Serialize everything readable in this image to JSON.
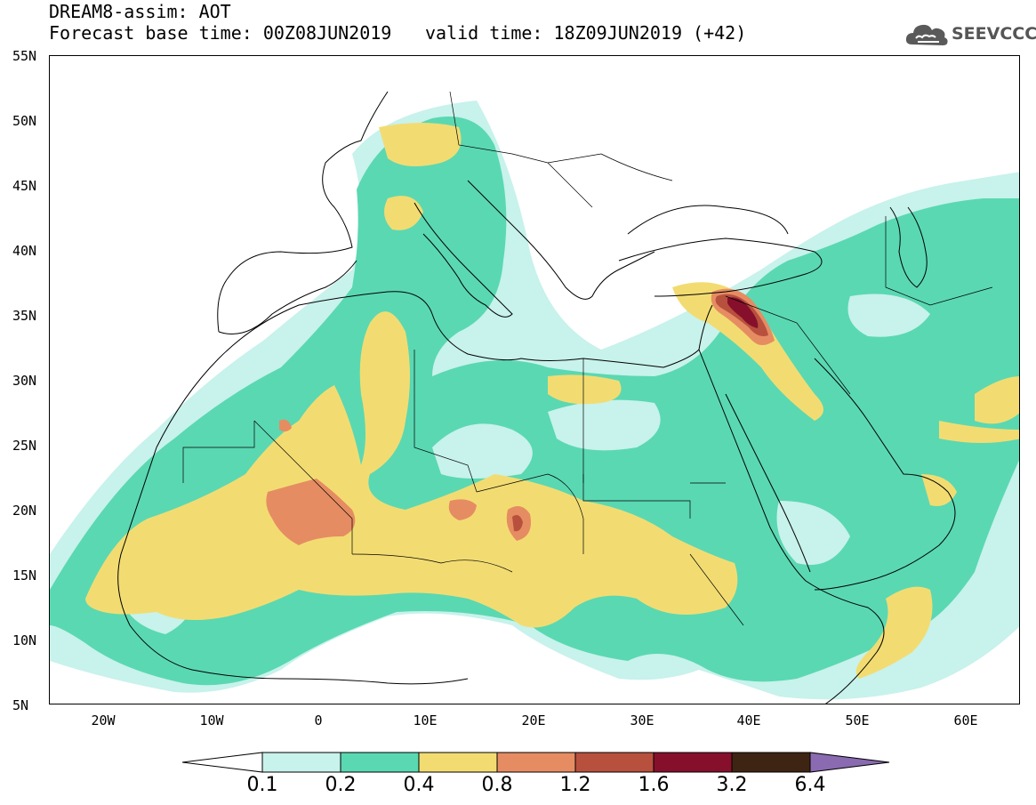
{
  "header": {
    "line1": "DREAM8-assim: AOT",
    "line2": "Forecast base time: 00Z08JUN2019",
    "valid": "valid time: 18Z09JUN2019 (+42)"
  },
  "logo": {
    "text": "SEEVCCC",
    "icon": "cloud-icon"
  },
  "map": {
    "variable": "AOT",
    "extent": {
      "lon": [
        -25,
        65
      ],
      "lat": [
        5,
        55
      ]
    },
    "lat_ticks": [
      "55N",
      "50N",
      "45N",
      "40N",
      "35N",
      "30N",
      "25N",
      "20N",
      "15N",
      "10N",
      "5N"
    ],
    "lon_ticks": [
      "20W",
      "10W",
      "0",
      "10E",
      "20E",
      "30E",
      "40E",
      "50E",
      "60E"
    ]
  },
  "legend": {
    "levels": [
      "0.1",
      "0.2",
      "0.4",
      "0.8",
      "1.2",
      "1.6",
      "3.2",
      "6.4"
    ],
    "colors": [
      "#c8f2ec",
      "#5ad8b2",
      "#f2dc72",
      "#e68c62",
      "#b8503e",
      "#86102c",
      "#3e2412",
      "#8a6ab0"
    ]
  }
}
